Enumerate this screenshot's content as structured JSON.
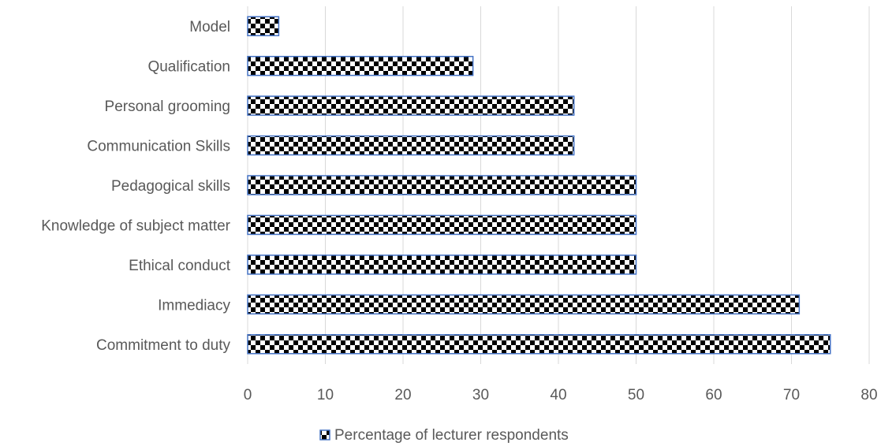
{
  "chart_data": {
    "type": "bar",
    "orientation": "horizontal",
    "categories": [
      "Commitment to duty",
      "Immediacy",
      "Ethical conduct",
      "Knowledge of subject matter",
      "Pedagogical skills",
      "Communication Skills",
      "Personal grooming",
      "Qualification",
      "Model"
    ],
    "series": [
      {
        "name": "Percentage of lecturer respondents",
        "values": [
          75,
          71,
          50,
          50,
          50,
          42,
          42,
          29,
          4
        ],
        "color": "#000000",
        "border_color": "#4472C4",
        "pattern": "checkerboard"
      }
    ],
    "xlim": [
      0,
      80
    ],
    "x_ticks": [
      0,
      10,
      20,
      30,
      40,
      50,
      60,
      70,
      80
    ],
    "grid": true,
    "legend_position": "bottom"
  }
}
